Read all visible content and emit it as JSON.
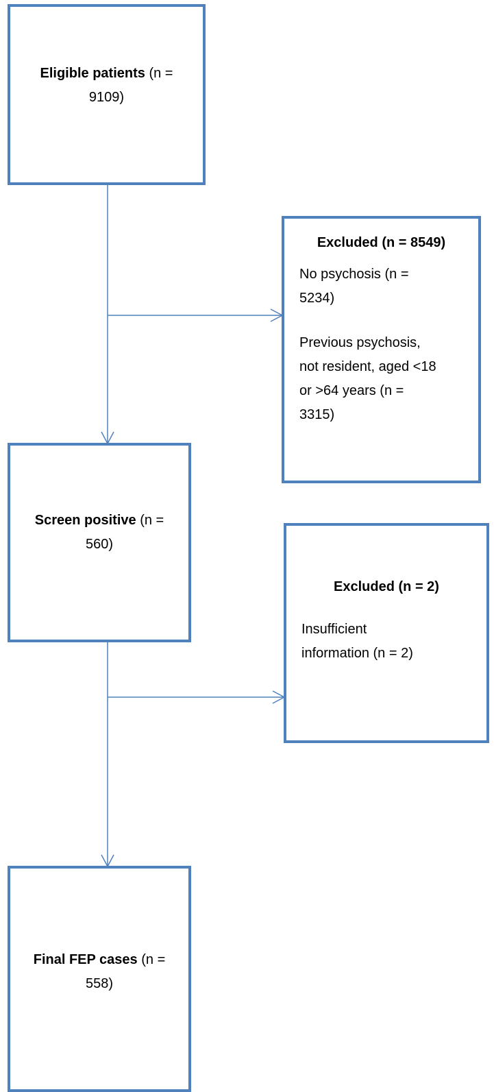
{
  "nodes": [
    {
      "bold": "Eligible patients",
      "text": "(n = 9109)"
    },
    {
      "title": "Excluded (n = 8549)",
      "items": [
        "No psychosis (n = 5234)",
        "Previous psychosis, not resident, aged <18 or >64 years (n = 3315)"
      ]
    },
    {
      "bold": "Screen positive",
      "text": "(n = 560)"
    },
    {
      "title": "Excluded (n = 2)",
      "items": [
        "Insufficient information (n = 2)"
      ]
    },
    {
      "bold": "Final FEP cases",
      "text": "(n = 558)"
    }
  ]
}
